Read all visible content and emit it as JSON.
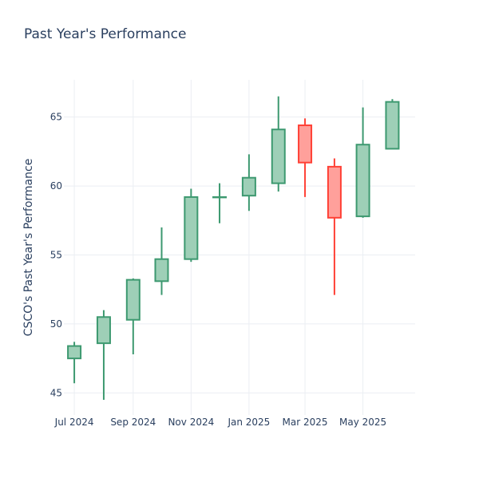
{
  "chart_data": {
    "type": "candlestick",
    "title": "Past Year's Performance",
    "xlabel": "",
    "ylabel": "CSCO's Past Year's Performance",
    "x_ticks": [
      "Jul 2024",
      "Sep 2024",
      "Nov 2024",
      "Jan 2025",
      "Mar 2025",
      "May 2025"
    ],
    "x_tick_dates": [
      "2024-07-01",
      "2024-09-01",
      "2024-11-01",
      "2025-01-01",
      "2025-03-01",
      "2025-05-01"
    ],
    "x_range": [
      "2024-06-20",
      "2025-06-25"
    ],
    "y_ticks": [
      45,
      50,
      55,
      60,
      65
    ],
    "ylim": [
      43.4,
      67.7
    ],
    "grid": true,
    "increasing_color": "#3d9970",
    "increasing_fill": "#9ecfb7",
    "decreasing_color": "#ff4136",
    "decreasing_fill": "#ffa09b",
    "candles": [
      {
        "date": "2024-07-01",
        "open": 47.5,
        "high": 48.7,
        "low": 45.7,
        "close": 48.4
      },
      {
        "date": "2024-08-01",
        "open": 48.6,
        "high": 51.0,
        "low": 44.5,
        "close": 50.5
      },
      {
        "date": "2024-09-01",
        "open": 50.3,
        "high": 53.3,
        "low": 47.8,
        "close": 53.2
      },
      {
        "date": "2024-10-01",
        "open": 53.1,
        "high": 57.0,
        "low": 52.1,
        "close": 54.7
      },
      {
        "date": "2024-11-01",
        "open": 54.7,
        "high": 59.8,
        "low": 54.5,
        "close": 59.2
      },
      {
        "date": "2024-12-01",
        "open": 59.2,
        "high": 60.2,
        "low": 57.3,
        "close": 59.2
      },
      {
        "date": "2025-01-01",
        "open": 59.3,
        "high": 62.3,
        "low": 58.2,
        "close": 60.6
      },
      {
        "date": "2025-02-01",
        "open": 60.2,
        "high": 66.5,
        "low": 59.6,
        "close": 64.1
      },
      {
        "date": "2025-03-01",
        "open": 64.4,
        "high": 64.9,
        "low": 59.2,
        "close": 61.7
      },
      {
        "date": "2025-04-01",
        "open": 61.4,
        "high": 62.0,
        "low": 52.1,
        "close": 57.7
      },
      {
        "date": "2025-05-01",
        "open": 57.8,
        "high": 65.7,
        "low": 57.7,
        "close": 63.0
      },
      {
        "date": "2025-06-01",
        "open": 62.7,
        "high": 66.3,
        "low": 62.7,
        "close": 66.1
      }
    ]
  }
}
